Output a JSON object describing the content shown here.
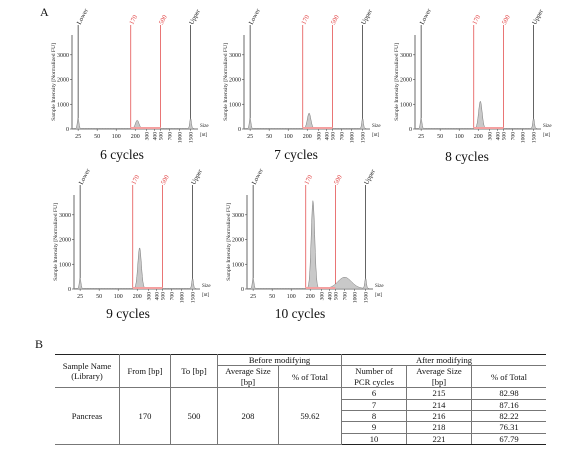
{
  "panel_a_label": "A",
  "panel_b_label": "B",
  "chart_data": [
    {
      "type": "area",
      "title": "6 cycles",
      "ylabel": "Sample Intensity [Normalized FU]",
      "xunit_top": "Size",
      "xunit_bottom": "[nt]",
      "ylim": [
        0,
        3800
      ],
      "yticks": [
        0,
        1000,
        2000,
        3000
      ],
      "xticks": [
        "25",
        "50",
        "100",
        "200",
        "300",
        "400",
        "500",
        "700",
        "1000",
        "1500"
      ],
      "markers": [
        {
          "label": "Lower",
          "color": "#222222"
        },
        {
          "label": "170",
          "color": "#e03a3a"
        },
        {
          "label": "500",
          "color": "#e03a3a"
        },
        {
          "label": "Upper",
          "color": "#222222"
        }
      ],
      "peaks": [
        {
          "size": 25,
          "height": 420
        },
        {
          "size": 215,
          "height": 330
        },
        {
          "size": 1500,
          "height": 430
        }
      ]
    },
    {
      "type": "area",
      "title": "7 cycles",
      "ylabel": "Sample Intensity [Normalized FU]",
      "xunit_top": "Size",
      "xunit_bottom": "[nt]",
      "ylim": [
        0,
        3800
      ],
      "yticks": [
        0,
        1000,
        2000,
        3000
      ],
      "xticks": [
        "25",
        "50",
        "100",
        "200",
        "300",
        "400",
        "500",
        "700",
        "1000",
        "1500"
      ],
      "markers": [
        {
          "label": "Lower",
          "color": "#222222"
        },
        {
          "label": "170",
          "color": "#e03a3a"
        },
        {
          "label": "500",
          "color": "#e03a3a"
        },
        {
          "label": "Upper",
          "color": "#222222"
        }
      ],
      "peaks": [
        {
          "size": 25,
          "height": 420
        },
        {
          "size": 214,
          "height": 620
        },
        {
          "size": 1500,
          "height": 430
        }
      ]
    },
    {
      "type": "area",
      "title": "8 cycles",
      "ylabel": "Sample Intensity [Normalized FU]",
      "xunit_top": "Size",
      "xunit_bottom": "[nt]",
      "ylim": [
        0,
        3800
      ],
      "yticks": [
        0,
        1000,
        2000,
        3000
      ],
      "xticks": [
        "25",
        "50",
        "100",
        "200",
        "300",
        "400",
        "500",
        "700",
        "1000",
        "1500"
      ],
      "markers": [
        {
          "label": "Lower",
          "color": "#222222"
        },
        {
          "label": "170",
          "color": "#e03a3a"
        },
        {
          "label": "500",
          "color": "#e03a3a"
        },
        {
          "label": "Upper",
          "color": "#222222"
        }
      ],
      "peaks": [
        {
          "size": 25,
          "height": 420
        },
        {
          "size": 216,
          "height": 1100
        },
        {
          "size": 1500,
          "height": 430
        }
      ]
    },
    {
      "type": "area",
      "title": "9 cycles",
      "ylabel": "Sample Intensity [Normalized FU]",
      "xunit_top": "Size",
      "xunit_bottom": "[nt]",
      "ylim": [
        0,
        3800
      ],
      "yticks": [
        0,
        1000,
        2000,
        3000
      ],
      "xticks": [
        "25",
        "50",
        "100",
        "200",
        "300",
        "400",
        "500",
        "700",
        "1000",
        "1500"
      ],
      "markers": [
        {
          "label": "Lower",
          "color": "#222222"
        },
        {
          "label": "170",
          "color": "#e03a3a"
        },
        {
          "label": "500",
          "color": "#e03a3a"
        },
        {
          "label": "Upper",
          "color": "#222222"
        }
      ],
      "peaks": [
        {
          "size": 25,
          "height": 420
        },
        {
          "size": 218,
          "height": 1650
        },
        {
          "size": 1500,
          "height": 430
        }
      ]
    },
    {
      "type": "area",
      "title": "10 cycles",
      "ylabel": "Sample Intensity [Normalized FU]",
      "xunit_top": "Size",
      "xunit_bottom": "[nt]",
      "ylim": [
        0,
        3800
      ],
      "yticks": [
        0,
        1000,
        2000,
        3000
      ],
      "xticks": [
        "25",
        "50",
        "100",
        "200",
        "300",
        "400",
        "500",
        "700",
        "1000",
        "1500"
      ],
      "markers": [
        {
          "label": "Lower",
          "color": "#222222"
        },
        {
          "label": "170",
          "color": "#e03a3a"
        },
        {
          "label": "500",
          "color": "#e03a3a"
        },
        {
          "label": "Upper",
          "color": "#222222"
        }
      ],
      "peaks": [
        {
          "size": 25,
          "height": 420
        },
        {
          "size": 221,
          "height": 3550
        },
        {
          "size": 700,
          "height": 450
        },
        {
          "size": 1500,
          "height": 430
        }
      ]
    }
  ],
  "table": {
    "groups": {
      "before": "Before modifying",
      "after": "After modifying"
    },
    "headers": {
      "sample": [
        "Sample Name",
        "(Library)"
      ],
      "from": "From [bp]",
      "to": "To [bp]",
      "avg_before": [
        "Average Size",
        "[bp]"
      ],
      "pct_before": "% of Total",
      "pcr": [
        "Number of",
        "PCR cycles"
      ],
      "avg_after": [
        "Average Size",
        "[bp]"
      ],
      "pct_after": "% of Total"
    },
    "sample": "Pancreas",
    "from": "170",
    "to": "500",
    "avg_before": "208",
    "pct_before": "59.62",
    "rows": [
      {
        "cycles": "6",
        "avg": "215",
        "pct": "82.98"
      },
      {
        "cycles": "7",
        "avg": "214",
        "pct": "87.16"
      },
      {
        "cycles": "8",
        "avg": "216",
        "pct": "82.22"
      },
      {
        "cycles": "9",
        "avg": "218",
        "pct": "76.31"
      },
      {
        "cycles": "10",
        "avg": "221",
        "pct": "67.79"
      }
    ]
  }
}
